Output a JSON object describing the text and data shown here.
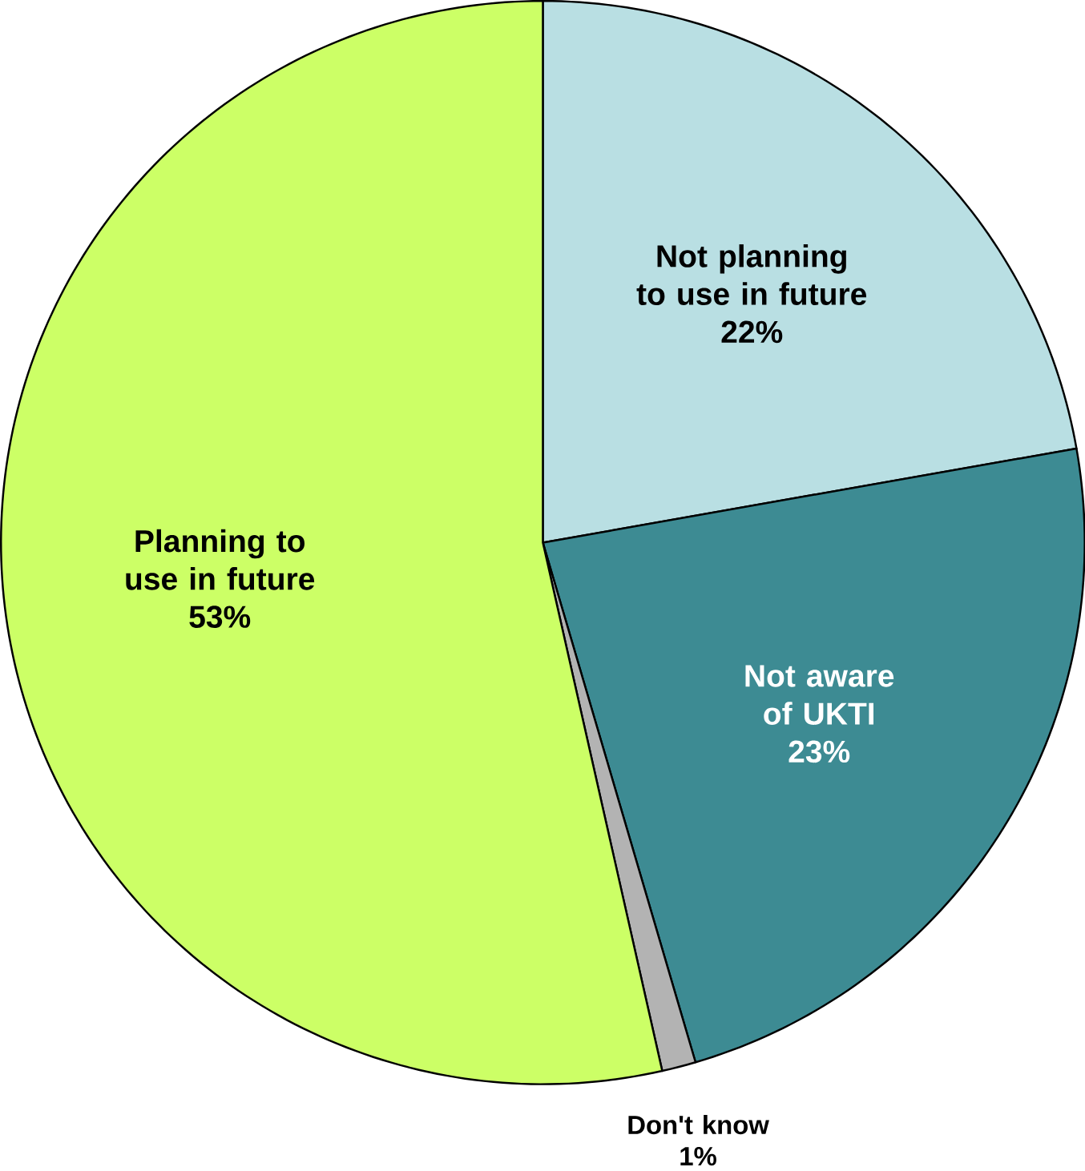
{
  "chart_data": {
    "type": "pie",
    "categories": [
      "Not planning to use in future",
      "Not aware of UKTI",
      "Don't know",
      "Planning to use in future"
    ],
    "values": [
      22,
      23,
      1,
      53
    ],
    "colors": [
      "#b9dfe3",
      "#3d8b93",
      "#b3b3b3",
      "#ccff66"
    ],
    "value_labels": [
      "22%",
      "23%",
      "1%",
      "53%"
    ]
  }
}
